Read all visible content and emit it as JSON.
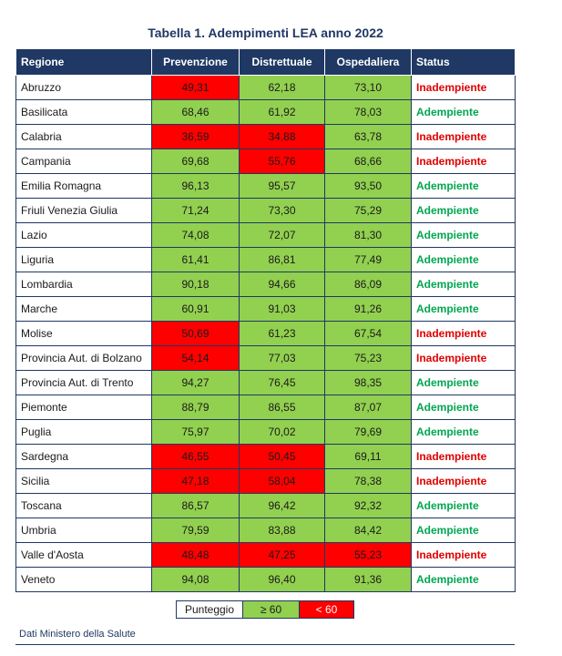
{
  "title": "Tabella 1. Adempimenti LEA anno 2022",
  "columns": [
    "Regione",
    "Prevenzione",
    "Distrettuale",
    "Ospedaliera",
    "Status"
  ],
  "rows": [
    {
      "region": "Abruzzo",
      "prevenzione": "49,31",
      "distrettuale": "62,18",
      "ospedaliera": "73,10",
      "status": "Inadempiente",
      "pre_ok": false,
      "dis_ok": true,
      "osp_ok": true,
      "adempiente": false
    },
    {
      "region": "Basilicata",
      "prevenzione": "68,46",
      "distrettuale": "61,92",
      "ospedaliera": "78,03",
      "status": "Adempiente",
      "pre_ok": true,
      "dis_ok": true,
      "osp_ok": true,
      "adempiente": true
    },
    {
      "region": "Calabria",
      "prevenzione": "36,59",
      "distrettuale": "34,88",
      "ospedaliera": "63,78",
      "status": "Inadempiente",
      "pre_ok": false,
      "dis_ok": false,
      "osp_ok": true,
      "adempiente": false
    },
    {
      "region": "Campania",
      "prevenzione": "69,68",
      "distrettuale": "55,76",
      "ospedaliera": "68,66",
      "status": "Inadempiente",
      "pre_ok": true,
      "dis_ok": false,
      "osp_ok": true,
      "adempiente": false
    },
    {
      "region": "Emilia Romagna",
      "prevenzione": "96,13",
      "distrettuale": "95,57",
      "ospedaliera": "93,50",
      "status": "Adempiente",
      "pre_ok": true,
      "dis_ok": true,
      "osp_ok": true,
      "adempiente": true
    },
    {
      "region": "Friuli Venezia Giulia",
      "prevenzione": "71,24",
      "distrettuale": "73,30",
      "ospedaliera": "75,29",
      "status": "Adempiente",
      "pre_ok": true,
      "dis_ok": true,
      "osp_ok": true,
      "adempiente": true
    },
    {
      "region": "Lazio",
      "prevenzione": "74,08",
      "distrettuale": "72,07",
      "ospedaliera": "81,30",
      "status": "Adempiente",
      "pre_ok": true,
      "dis_ok": true,
      "osp_ok": true,
      "adempiente": true
    },
    {
      "region": "Liguria",
      "prevenzione": "61,41",
      "distrettuale": "86,81",
      "ospedaliera": "77,49",
      "status": "Adempiente",
      "pre_ok": true,
      "dis_ok": true,
      "osp_ok": true,
      "adempiente": true
    },
    {
      "region": "Lombardia",
      "prevenzione": "90,18",
      "distrettuale": "94,66",
      "ospedaliera": "86,09",
      "status": "Adempiente",
      "pre_ok": true,
      "dis_ok": true,
      "osp_ok": true,
      "adempiente": true
    },
    {
      "region": "Marche",
      "prevenzione": "60,91",
      "distrettuale": "91,03",
      "ospedaliera": "91,26",
      "status": "Adempiente",
      "pre_ok": true,
      "dis_ok": true,
      "osp_ok": true,
      "adempiente": true
    },
    {
      "region": "Molise",
      "prevenzione": "50,69",
      "distrettuale": "61,23",
      "ospedaliera": "67,54",
      "status": "Inadempiente",
      "pre_ok": false,
      "dis_ok": true,
      "osp_ok": true,
      "adempiente": false
    },
    {
      "region": "Provincia Aut. di Bolzano",
      "prevenzione": "54,14",
      "distrettuale": "77,03",
      "ospedaliera": "75,23",
      "status": "Inadempiente",
      "pre_ok": false,
      "dis_ok": true,
      "osp_ok": true,
      "adempiente": false
    },
    {
      "region": "Provincia Aut. di Trento",
      "prevenzione": "94,27",
      "distrettuale": "76,45",
      "ospedaliera": "98,35",
      "status": "Adempiente",
      "pre_ok": true,
      "dis_ok": true,
      "osp_ok": true,
      "adempiente": true
    },
    {
      "region": "Piemonte",
      "prevenzione": "88,79",
      "distrettuale": "86,55",
      "ospedaliera": "87,07",
      "status": "Adempiente",
      "pre_ok": true,
      "dis_ok": true,
      "osp_ok": true,
      "adempiente": true
    },
    {
      "region": "Puglia",
      "prevenzione": "75,97",
      "distrettuale": "70,02",
      "ospedaliera": "79,69",
      "status": "Adempiente",
      "pre_ok": true,
      "dis_ok": true,
      "osp_ok": true,
      "adempiente": true
    },
    {
      "region": "Sardegna",
      "prevenzione": "46,55",
      "distrettuale": "50,45",
      "ospedaliera": "69,11",
      "status": "Inadempiente",
      "pre_ok": false,
      "dis_ok": false,
      "osp_ok": true,
      "adempiente": false
    },
    {
      "region": "Sicilia",
      "prevenzione": "47,18",
      "distrettuale": "58,04",
      "ospedaliera": "78,38",
      "status": "Inadempiente",
      "pre_ok": false,
      "dis_ok": false,
      "osp_ok": true,
      "adempiente": false
    },
    {
      "region": "Toscana",
      "prevenzione": "86,57",
      "distrettuale": "96,42",
      "ospedaliera": "92,32",
      "status": "Adempiente",
      "pre_ok": true,
      "dis_ok": true,
      "osp_ok": true,
      "adempiente": true
    },
    {
      "region": "Umbria",
      "prevenzione": "79,59",
      "distrettuale": "83,88",
      "ospedaliera": "84,42",
      "status": "Adempiente",
      "pre_ok": true,
      "dis_ok": true,
      "osp_ok": true,
      "adempiente": true
    },
    {
      "region": "Valle d'Aosta",
      "prevenzione": "48,48",
      "distrettuale": "47,25",
      "ospedaliera": "55,23",
      "status": "Inadempiente",
      "pre_ok": false,
      "dis_ok": false,
      "osp_ok": false,
      "adempiente": false
    },
    {
      "region": "Veneto",
      "prevenzione": "94,08",
      "distrettuale": "96,40",
      "ospedaliera": "91,36",
      "status": "Adempiente",
      "pre_ok": true,
      "dis_ok": true,
      "osp_ok": true,
      "adempiente": true
    }
  ],
  "legend": {
    "label": "Punteggio",
    "ok": "≥ 60",
    "bad": "< 60"
  },
  "source": "Dati Ministero della Salute",
  "colors": {
    "header_bg": "#1f3864",
    "ok_fill": "#92d050",
    "bad_fill": "#ff0000",
    "adempiente_text": "#00a650",
    "inadempiente_text": "#e00000"
  }
}
